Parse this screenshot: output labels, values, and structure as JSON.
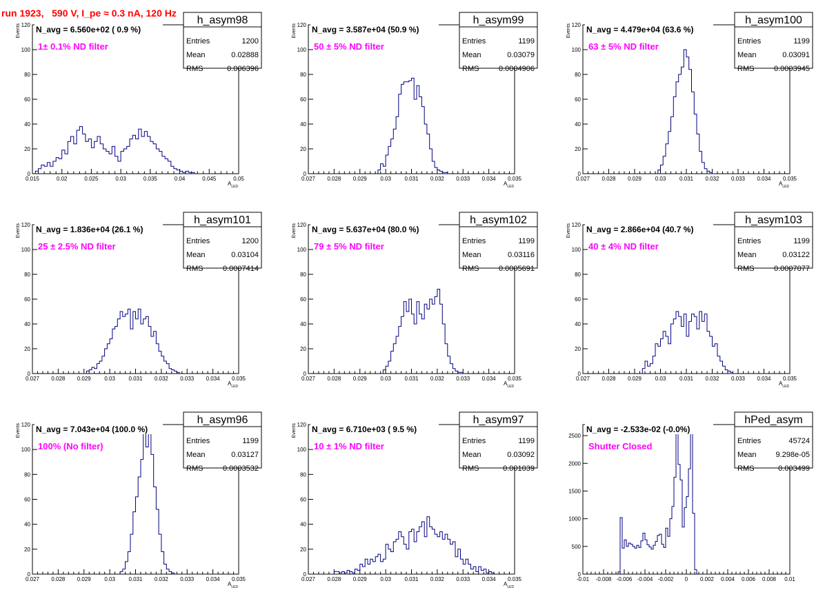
{
  "page_title": "run 1923,   590 V, I_pe ≈ 0.3 nA, 120 Hz",
  "colors": {
    "title": "#ff0000",
    "annotation": "#ff00ff",
    "histogram": "#000080",
    "axis": "#000000"
  },
  "chart_data": [
    {
      "type": "bar",
      "name": "h_asym98",
      "n_avg": "N_avg = 6.560e+02 ( 0.9 %)",
      "annotation": "1± 0.1% ND filter",
      "stats": {
        "entries": "1200",
        "mean": "0.02888",
        "rms": "0.006396"
      },
      "stat_labels": {
        "entries": "Entries",
        "mean": "Mean",
        "rms": "RMS"
      },
      "xlabel": "A",
      "xlabel_sub": "LED",
      "ylabel": "Events",
      "xlim": [
        0.015,
        0.05
      ],
      "ylim": [
        0,
        120
      ],
      "xticks": [
        "0.015",
        "0.02",
        "0.025",
        "0.03",
        "0.035",
        "0.04",
        "0.045",
        "0.05"
      ],
      "yticks": [
        "0",
        "20",
        "40",
        "60",
        "80",
        "100",
        "120"
      ],
      "bin_start": 0.0155,
      "bin_width": 0.0005,
      "values": [
        2,
        4,
        7,
        6,
        9,
        6,
        10,
        13,
        12,
        19,
        16,
        26,
        30,
        24,
        35,
        38,
        32,
        26,
        28,
        21,
        26,
        30,
        24,
        20,
        18,
        16,
        22,
        14,
        10,
        18,
        20,
        22,
        28,
        31,
        28,
        36,
        30,
        34,
        30,
        26,
        24,
        20,
        18,
        14,
        12,
        10,
        6,
        4,
        3,
        2,
        1,
        2,
        1,
        1
      ]
    },
    {
      "type": "bar",
      "name": "h_asym99",
      "n_avg": "N_avg = 3.587e+04 (50.9 %)",
      "annotation": "50 ± 5% ND filter",
      "stats": {
        "entries": "1199",
        "mean": "0.03079",
        "rms": "0.0004906"
      },
      "stat_labels": {
        "entries": "Entries",
        "mean": "Mean",
        "rms": "RMS"
      },
      "xlabel": "A",
      "xlabel_sub": "LED",
      "ylabel": "Events",
      "xlim": [
        0.027,
        0.035
      ],
      "ylim": [
        0,
        120
      ],
      "xticks": [
        "0.027",
        "0.028",
        "0.029",
        "0.03",
        "0.031",
        "0.032",
        "0.033",
        "0.034",
        "0.035"
      ],
      "yticks": [
        "0",
        "20",
        "40",
        "60",
        "80",
        "100",
        "120"
      ],
      "bin_start": 0.0297,
      "bin_width": 0.0001,
      "values": [
        3,
        8,
        6,
        15,
        22,
        28,
        36,
        46,
        64,
        72,
        74,
        74,
        75,
        77,
        60,
        71,
        62,
        54,
        40,
        32,
        20,
        10,
        5,
        3,
        2,
        1,
        1
      ]
    },
    {
      "type": "bar",
      "name": "h_asym100",
      "n_avg": "N_avg = 4.479e+04 (63.6 %)",
      "annotation": "63 ± 5% ND filter",
      "stats": {
        "entries": "1199",
        "mean": "0.03091",
        "rms": "0.0003945"
      },
      "stat_labels": {
        "entries": "Entries",
        "mean": "Mean",
        "rms": "RMS"
      },
      "xlabel": "A",
      "xlabel_sub": "LED",
      "ylabel": "Events",
      "xlim": [
        0.027,
        0.035
      ],
      "ylim": [
        0,
        120
      ],
      "xticks": [
        "0.027",
        "0.028",
        "0.029",
        "0.03",
        "0.031",
        "0.032",
        "0.033",
        "0.034",
        "0.035"
      ],
      "yticks": [
        "0",
        "20",
        "40",
        "60",
        "80",
        "100",
        "120"
      ],
      "bin_start": 0.0299,
      "bin_width": 0.0001,
      "values": [
        3,
        7,
        14,
        24,
        34,
        46,
        62,
        74,
        80,
        86,
        100,
        94,
        84,
        66,
        48,
        32,
        18,
        9,
        4,
        2,
        1
      ]
    },
    {
      "type": "bar",
      "name": "h_asym101",
      "n_avg": "N_avg = 1.836e+04 (26.1 %)",
      "annotation": "25 ± 2.5% ND filter",
      "stats": {
        "entries": "1200",
        "mean": "0.03104",
        "rms": "0.0007414"
      },
      "stat_labels": {
        "entries": "Entries",
        "mean": "Mean",
        "rms": "RMS"
      },
      "xlabel": "A",
      "xlabel_sub": "LED",
      "ylabel": "Events",
      "xlim": [
        0.027,
        0.035
      ],
      "ylim": [
        0,
        120
      ],
      "xticks": [
        "0.027",
        "0.028",
        "0.029",
        "0.03",
        "0.031",
        "0.032",
        "0.033",
        "0.034",
        "0.035"
      ],
      "yticks": [
        "0",
        "20",
        "40",
        "60",
        "80",
        "100",
        "120"
      ],
      "bin_start": 0.0291,
      "bin_width": 0.0001,
      "values": [
        2,
        3,
        5,
        4,
        8,
        10,
        14,
        20,
        24,
        28,
        36,
        38,
        44,
        50,
        46,
        48,
        52,
        36,
        50,
        44,
        52,
        40,
        44,
        46,
        38,
        30,
        34,
        24,
        18,
        14,
        10,
        8,
        4,
        3,
        2,
        1
      ]
    },
    {
      "type": "bar",
      "name": "h_asym102",
      "n_avg": "N_avg = 5.637e+04 (80.0 %)",
      "annotation": "79 ± 5% ND filter",
      "stats": {
        "entries": "1199",
        "mean": "0.03116",
        "rms": "0.0005691"
      },
      "stat_labels": {
        "entries": "Entries",
        "mean": "Mean",
        "rms": "RMS"
      },
      "xlabel": "A",
      "xlabel_sub": "LED",
      "ylabel": "Events",
      "xlim": [
        0.027,
        0.035
      ],
      "ylim": [
        0,
        120
      ],
      "xticks": [
        "0.027",
        "0.028",
        "0.029",
        "0.03",
        "0.031",
        "0.032",
        "0.033",
        "0.034",
        "0.035"
      ],
      "yticks": [
        "0",
        "20",
        "40",
        "60",
        "80",
        "100",
        "120"
      ],
      "bin_start": 0.0299,
      "bin_width": 0.0001,
      "values": [
        3,
        6,
        10,
        18,
        24,
        30,
        38,
        46,
        58,
        50,
        60,
        48,
        40,
        58,
        48,
        44,
        56,
        52,
        60,
        56,
        62,
        68,
        56,
        40,
        24,
        14,
        8,
        4,
        2,
        1,
        1
      ]
    },
    {
      "type": "bar",
      "name": "h_asym103",
      "n_avg": "N_avg = 2.866e+04 (40.7 %)",
      "annotation": "40 ± 4% ND filter",
      "stats": {
        "entries": "1199",
        "mean": "0.03122",
        "rms": "0.0007077"
      },
      "stat_labels": {
        "entries": "Entries",
        "mean": "Mean",
        "rms": "RMS"
      },
      "xlabel": "A",
      "xlabel_sub": "LED",
      "ylabel": "Events",
      "xlim": [
        0.027,
        0.035
      ],
      "ylim": [
        0,
        120
      ],
      "xticks": [
        "0.027",
        "0.028",
        "0.029",
        "0.03",
        "0.031",
        "0.032",
        "0.033",
        "0.034",
        "0.035"
      ],
      "yticks": [
        "0",
        "20",
        "40",
        "60",
        "80",
        "100",
        "120"
      ],
      "bin_start": 0.0293,
      "bin_width": 0.0001,
      "values": [
        4,
        10,
        6,
        8,
        14,
        24,
        22,
        28,
        34,
        30,
        24,
        40,
        44,
        50,
        46,
        38,
        48,
        30,
        42,
        48,
        46,
        36,
        50,
        42,
        48,
        34,
        30,
        22,
        24,
        14,
        10,
        6,
        3,
        2,
        1
      ]
    },
    {
      "type": "bar",
      "name": "h_asym96",
      "n_avg": "N_avg = 7.043e+04 (100.0 %)",
      "annotation": "100% (No filter)",
      "stats": {
        "entries": "1199",
        "mean": "0.03127",
        "rms": "0.0003532"
      },
      "stat_labels": {
        "entries": "Entries",
        "mean": "Mean",
        "rms": "RMS"
      },
      "xlabel": "A",
      "xlabel_sub": "LED",
      "ylabel": "Events",
      "xlim": [
        0.027,
        0.035
      ],
      "ylim": [
        0,
        120
      ],
      "xticks": [
        "0.027",
        "0.028",
        "0.029",
        "0.03",
        "0.031",
        "0.032",
        "0.033",
        "0.034",
        "0.035"
      ],
      "yticks": [
        "0",
        "20",
        "40",
        "60",
        "80",
        "100",
        "120"
      ],
      "bin_start": 0.0304,
      "bin_width": 0.0001,
      "values": [
        2,
        4,
        10,
        18,
        32,
        50,
        62,
        78,
        92,
        120,
        102,
        120,
        96,
        70,
        52,
        32,
        18,
        8,
        4,
        2,
        1
      ]
    },
    {
      "type": "bar",
      "name": "h_asym97",
      "n_avg": "N_avg = 6.710e+03 ( 9.5 %)",
      "annotation": "10 ± 1% ND filter",
      "stats": {
        "entries": "1199",
        "mean": "0.03092",
        "rms": "0.001039"
      },
      "stat_labels": {
        "entries": "Entries",
        "mean": "Mean",
        "rms": "RMS"
      },
      "xlabel": "A",
      "xlabel_sub": "LED",
      "ylabel": "Events",
      "xlim": [
        0.027,
        0.035
      ],
      "ylim": [
        0,
        120
      ],
      "xticks": [
        "0.027",
        "0.028",
        "0.029",
        "0.03",
        "0.031",
        "0.032",
        "0.033",
        "0.034",
        "0.035"
      ],
      "yticks": [
        "0",
        "20",
        "40",
        "60",
        "80",
        "100",
        "120"
      ],
      "bin_start": 0.028,
      "bin_width": 0.0001,
      "values": [
        2,
        2,
        1,
        2,
        1,
        3,
        2,
        1,
        4,
        3,
        8,
        6,
        12,
        8,
        12,
        10,
        14,
        16,
        10,
        12,
        24,
        20,
        18,
        26,
        28,
        34,
        30,
        24,
        20,
        34,
        36,
        26,
        34,
        38,
        42,
        30,
        46,
        38,
        36,
        32,
        30,
        34,
        28,
        32,
        28,
        24,
        26,
        14,
        20,
        12,
        8,
        12,
        8,
        4,
        6,
        2,
        6,
        3,
        4,
        1,
        2,
        1
      ]
    },
    {
      "type": "bar",
      "name": "hPed_asym",
      "n_avg": "N_avg = -2.533e-02 (-0.0%)",
      "annotation": "Shutter Closed",
      "stats": {
        "entries": "45724",
        "mean": "9.298e-05",
        "rms": "0.003499"
      },
      "stat_labels": {
        "entries": "Entries",
        "mean": "Mean",
        "rms": "RMS"
      },
      "xlabel": "",
      "xlabel_sub": "",
      "ylabel": "",
      "xlim": [
        -0.01,
        0.01
      ],
      "ylim": [
        0,
        2700
      ],
      "xticks": [
        "-0.01",
        "-0.008",
        "-0.006",
        "-0.004",
        "-0.002",
        "0",
        "0.002",
        "0.004",
        "0.006",
        "0.008",
        "0.01"
      ],
      "yticks": [
        "0",
        "500",
        "1000",
        "1500",
        "2000",
        "2500"
      ],
      "bin_start": -0.0066,
      "bin_width": 0.0002,
      "values": [
        40,
        1020,
        470,
        620,
        500,
        560,
        540,
        500,
        470,
        520,
        480,
        600,
        740,
        620,
        530,
        490,
        450,
        520,
        590,
        700,
        720,
        540,
        480,
        830,
        680,
        1000,
        1220,
        1750,
        2750,
        1980,
        1700,
        850,
        1200,
        1400,
        1900,
        2700,
        1100,
        80
      ]
    }
  ]
}
